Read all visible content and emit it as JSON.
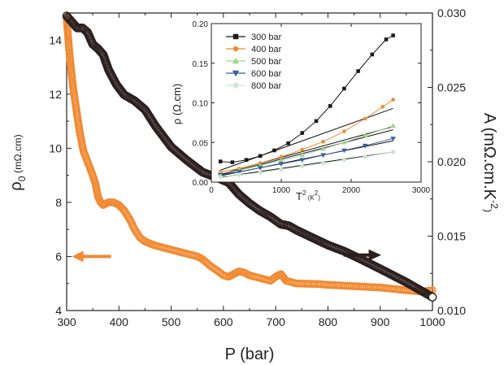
{
  "chart_data": [
    {
      "type": "scatter",
      "xlabel": "P (bar)",
      "ylabel_left": "ρ0 (mΩ.cm)",
      "ylabel_right": "A (mΩ.cm.K-2)",
      "xlim": [
        300,
        1000
      ],
      "ylim_left": [
        4,
        15
      ],
      "ylim_right": [
        0.01,
        0.03
      ],
      "x_ticks": [
        "300",
        "400",
        "500",
        "600",
        "700",
        "800",
        "900",
        "1000"
      ],
      "y_ticks_left": [
        "4",
        "6",
        "8",
        "10",
        "12",
        "14"
      ],
      "y_ticks_right": [
        "0.010",
        "0.015",
        "0.020",
        "0.025",
        "0.030"
      ],
      "series": [
        {
          "axis": "left",
          "color": "#f08a32",
          "points": [
            [
              300,
              14.8
            ],
            [
              302,
              14.3
            ],
            [
              305,
              13.6
            ],
            [
              308,
              13.0
            ],
            [
              312,
              12.3
            ],
            [
              318,
              11.5
            ],
            [
              325,
              10.6
            ],
            [
              332,
              9.9
            ],
            [
              340,
              9.5
            ],
            [
              348,
              9.1
            ],
            [
              355,
              8.7
            ],
            [
              360,
              8.2
            ],
            [
              365,
              8.0
            ],
            [
              370,
              7.9
            ],
            [
              380,
              8.0
            ],
            [
              390,
              8.0
            ],
            [
              400,
              7.9
            ],
            [
              410,
              7.7
            ],
            [
              420,
              7.4
            ],
            [
              430,
              7.0
            ],
            [
              440,
              6.7
            ],
            [
              450,
              6.55
            ],
            [
              470,
              6.4
            ],
            [
              500,
              6.25
            ],
            [
              530,
              6.1
            ],
            [
              550,
              6.0
            ],
            [
              560,
              5.9
            ],
            [
              575,
              5.65
            ],
            [
              590,
              5.45
            ],
            [
              600,
              5.3
            ],
            [
              610,
              5.25
            ],
            [
              620,
              5.35
            ],
            [
              630,
              5.45
            ],
            [
              640,
              5.4
            ],
            [
              650,
              5.3
            ],
            [
              670,
              5.2
            ],
            [
              690,
              5.1
            ],
            [
              700,
              5.25
            ],
            [
              710,
              5.35
            ],
            [
              720,
              5.1
            ],
            [
              740,
              5.0
            ],
            [
              780,
              4.98
            ],
            [
              800,
              4.95
            ],
            [
              850,
              4.9
            ],
            [
              900,
              4.85
            ],
            [
              950,
              4.75
            ],
            [
              980,
              4.7
            ],
            [
              1000,
              4.75
            ]
          ]
        },
        {
          "axis": "right",
          "color": "#2a1e1e",
          "points": [
            [
              300,
              0.0298
            ],
            [
              310,
              0.0294
            ],
            [
              320,
              0.029
            ],
            [
              330,
              0.029
            ],
            [
              340,
              0.0287
            ],
            [
              350,
              0.0279
            ],
            [
              360,
              0.0276
            ],
            [
              370,
              0.0272
            ],
            [
              380,
              0.0262
            ],
            [
              395,
              0.0252
            ],
            [
              410,
              0.0245
            ],
            [
              430,
              0.0241
            ],
            [
              450,
              0.0235
            ],
            [
              470,
              0.0224
            ],
            [
              500,
              0.021
            ],
            [
              530,
              0.0201
            ],
            [
              560,
              0.0193
            ],
            [
              590,
              0.0189
            ],
            [
              610,
              0.0186
            ],
            [
              630,
              0.0178
            ],
            [
              650,
              0.0172
            ],
            [
              670,
              0.0167
            ],
            [
              690,
              0.0163
            ],
            [
              710,
              0.0158
            ],
            [
              725,
              0.0157
            ],
            [
              740,
              0.0154
            ],
            [
              770,
              0.0149
            ],
            [
              800,
              0.0144
            ],
            [
              830,
              0.014
            ],
            [
              860,
              0.0135
            ],
            [
              900,
              0.0128
            ],
            [
              950,
              0.0119
            ],
            [
              980,
              0.0113
            ],
            [
              1000,
              0.0109
            ]
          ]
        }
      ],
      "arrows": [
        {
          "direction": "left",
          "color": "#f08a32"
        },
        {
          "direction": "right",
          "color": "#2a1e1e"
        }
      ]
    },
    {
      "type": "scatter",
      "xlabel": "T2 (K2)",
      "ylabel": "ρ (Ω.cm)",
      "xlim": [
        0,
        3000
      ],
      "ylim": [
        0,
        0.2
      ],
      "x_ticks": [
        "0",
        "1000",
        "2000",
        "3000"
      ],
      "y_ticks": [
        "0.00",
        "0.05",
        "0.10",
        "0.15",
        "0.20"
      ],
      "legend_position": "top-left",
      "series": [
        {
          "name": "300 bar",
          "color": "#1a1a1a",
          "marker": "square",
          "points": [
            [
              130,
              0.026
            ],
            [
              300,
              0.025
            ],
            [
              500,
              0.028
            ],
            [
              700,
              0.033
            ],
            [
              900,
              0.04
            ],
            [
              1100,
              0.049
            ],
            [
              1300,
              0.062
            ],
            [
              1500,
              0.077
            ],
            [
              1700,
              0.096
            ],
            [
              1900,
              0.118
            ],
            [
              2100,
              0.14
            ],
            [
              2300,
              0.161
            ],
            [
              2500,
              0.18
            ],
            [
              2600,
              0.185
            ]
          ],
          "fit": [
            [
              130,
              0.015
            ],
            [
              2600,
              0.093
            ]
          ]
        },
        {
          "name": "400 bar",
          "color": "#f08a32",
          "marker": "circle",
          "points": [
            [
              130,
              0.013
            ],
            [
              400,
              0.017
            ],
            [
              700,
              0.024
            ],
            [
              1000,
              0.032
            ],
            [
              1300,
              0.041
            ],
            [
              1600,
              0.051
            ],
            [
              1900,
              0.064
            ],
            [
              2200,
              0.08
            ],
            [
              2450,
              0.095
            ],
            [
              2600,
              0.104
            ]
          ],
          "fit": [
            [
              130,
              0.01
            ],
            [
              2600,
              0.07
            ]
          ]
        },
        {
          "name": "500 bar",
          "color": "#a4d38a",
          "marker": "triangle",
          "points": [
            [
              130,
              0.011
            ],
            [
              400,
              0.015
            ],
            [
              700,
              0.021
            ],
            [
              1000,
              0.027
            ],
            [
              1300,
              0.034
            ],
            [
              1600,
              0.042
            ],
            [
              1900,
              0.05
            ],
            [
              2200,
              0.059
            ],
            [
              2600,
              0.071
            ]
          ],
          "fit": [
            [
              130,
              0.009
            ],
            [
              2600,
              0.066
            ]
          ]
        },
        {
          "name": "600 bar",
          "color": "#3a5fa0",
          "marker": "triangle-down",
          "points": [
            [
              130,
              0.009
            ],
            [
              400,
              0.013
            ],
            [
              700,
              0.018
            ],
            [
              1000,
              0.023
            ],
            [
              1300,
              0.028
            ],
            [
              1600,
              0.034
            ],
            [
              1900,
              0.04
            ],
            [
              2200,
              0.046
            ],
            [
              2600,
              0.055
            ]
          ],
          "fit": [
            [
              130,
              0.008
            ],
            [
              2600,
              0.052
            ]
          ]
        },
        {
          "name": "800 bar",
          "color": "#c9e6cf",
          "marker": "diamond",
          "points": [
            [
              130,
              0.007
            ],
            [
              400,
              0.009
            ],
            [
              700,
              0.012
            ],
            [
              1000,
              0.016
            ],
            [
              1300,
              0.02
            ],
            [
              1600,
              0.024
            ],
            [
              1900,
              0.028
            ],
            [
              2200,
              0.032
            ],
            [
              2600,
              0.038
            ]
          ],
          "fit": [
            [
              130,
              0.006
            ],
            [
              2600,
              0.038
            ]
          ]
        }
      ]
    }
  ]
}
